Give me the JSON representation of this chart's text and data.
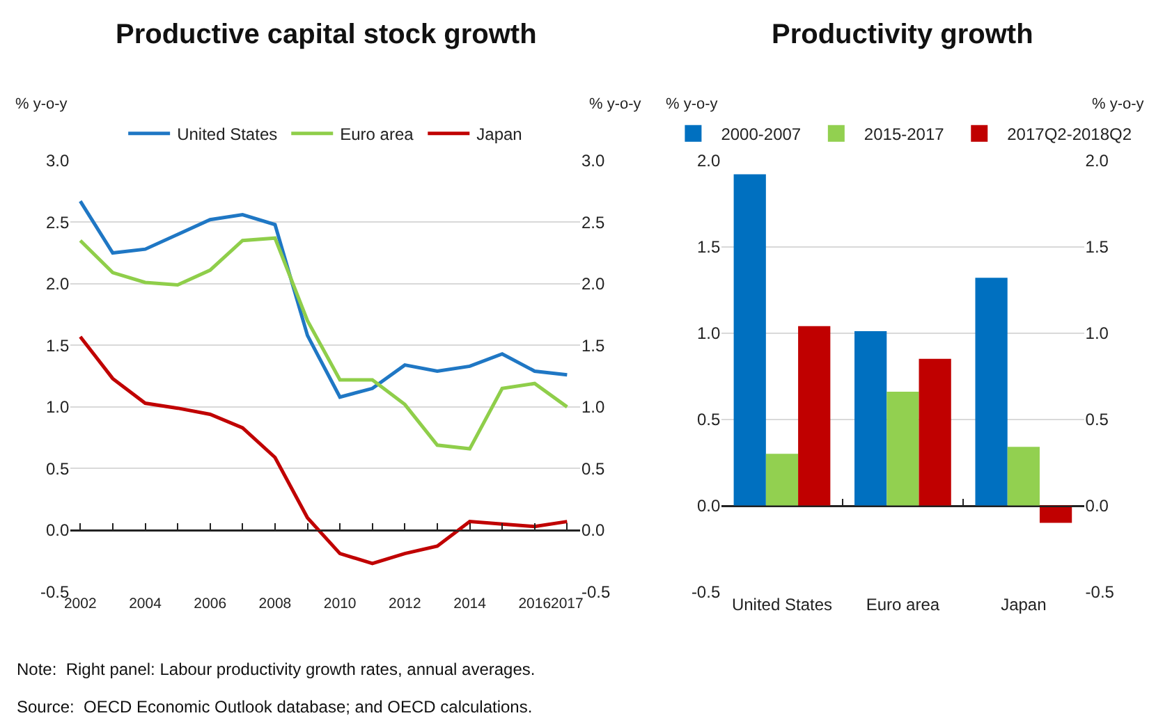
{
  "chart_data": [
    {
      "type": "line",
      "title": "Productive capital stock growth",
      "ylabel": "% y-o-y",
      "y2label": "% y-o-y",
      "x": [
        2002,
        2003,
        2004,
        2005,
        2006,
        2007,
        2008,
        2009,
        2010,
        2011,
        2012,
        2013,
        2014,
        2015,
        2016,
        2017
      ],
      "series": [
        {
          "name": "United States",
          "color": "#1f77c4",
          "values": [
            2.67,
            2.25,
            2.28,
            2.4,
            2.52,
            2.56,
            2.48,
            1.58,
            1.08,
            1.15,
            1.34,
            1.29,
            1.33,
            1.43,
            1.29,
            1.26
          ]
        },
        {
          "name": "Euro area",
          "color": "#8fce4a",
          "values": [
            2.35,
            2.09,
            2.01,
            1.99,
            2.11,
            2.35,
            2.37,
            1.7,
            1.22,
            1.22,
            1.02,
            0.69,
            0.66,
            1.15,
            1.19,
            1.0
          ]
        },
        {
          "name": "Japan",
          "color": "#c00000",
          "values": [
            1.57,
            1.23,
            1.03,
            0.99,
            0.94,
            0.83,
            0.59,
            0.1,
            -0.19,
            -0.27,
            -0.19,
            -0.13,
            0.07,
            0.05,
            0.03,
            0.07
          ]
        }
      ],
      "xlim": [
        2001.7,
        2017.4
      ],
      "xticks": [
        2002,
        2004,
        2006,
        2008,
        2010,
        2012,
        2014,
        2016,
        2017
      ],
      "ylim": [
        -0.5,
        3.0
      ],
      "yticks": [
        {
          "value": -0.5,
          "label": "-0.5"
        },
        {
          "value": 0,
          "label": "0.0"
        },
        {
          "value": 0.5,
          "label": "0.5"
        },
        {
          "value": 1,
          "label": "1.0"
        },
        {
          "value": 1.5,
          "label": "1.5"
        },
        {
          "value": 2,
          "label": "2.0"
        },
        {
          "value": 2.5,
          "label": "2.5"
        },
        {
          "value": 3,
          "label": "3.0"
        }
      ],
      "y2lim": [
        -0.5,
        3.0
      ],
      "y2ticks": [
        {
          "value": -0.5,
          "label": "-0.5"
        },
        {
          "value": 0,
          "label": "0.0"
        },
        {
          "value": 0.5,
          "label": "0.5"
        },
        {
          "value": 1,
          "label": "1.0"
        },
        {
          "value": 1.5,
          "label": "1.5"
        },
        {
          "value": 2,
          "label": "2.0"
        },
        {
          "value": 2.5,
          "label": "2.5"
        },
        {
          "value": 3,
          "label": "3.0"
        }
      ],
      "grid": "y",
      "legend": "top"
    },
    {
      "type": "bar",
      "title": "Productivity growth",
      "ylabel": "% y-o-y",
      "y2label": "% y-o-y",
      "categories": [
        "United States",
        "Euro area",
        "Japan"
      ],
      "series": [
        {
          "name": "2000-2007",
          "color": "#0070c0",
          "values": [
            1.92,
            1.01,
            1.32
          ]
        },
        {
          "name": "2015-2017",
          "color": "#92d050",
          "values": [
            0.3,
            0.66,
            0.34
          ]
        },
        {
          "name": "2017Q2-2018Q2",
          "color": "#c00000",
          "values": [
            1.04,
            0.85,
            -0.1
          ]
        }
      ],
      "ylim": [
        -0.5,
        2.0
      ],
      "yticks": [
        {
          "value": -0.5,
          "label": "-0.5"
        },
        {
          "value": 0,
          "label": "0.0"
        },
        {
          "value": 0.5,
          "label": "0.5"
        },
        {
          "value": 1,
          "label": "1.0"
        },
        {
          "value": 1.5,
          "label": "1.5"
        },
        {
          "value": 2,
          "label": "2.0"
        }
      ],
      "y2lim": [
        -0.5,
        2.0
      ],
      "y2ticks": [
        {
          "value": -0.5,
          "label": "-0.5"
        },
        {
          "value": 0,
          "label": "0.0"
        },
        {
          "value": 0.5,
          "label": "0.5"
        },
        {
          "value": 1,
          "label": "1.0"
        },
        {
          "value": 1.5,
          "label": "1.5"
        },
        {
          "value": 2,
          "label": "2.0"
        }
      ],
      "grid": "y",
      "legend": "top",
      "annotations": [
        "Note:  Right panel: Labour productivity growth rates, annual averages.",
        "Source:  OECD Economic Outlook database; and OECD calculations."
      ]
    }
  ]
}
